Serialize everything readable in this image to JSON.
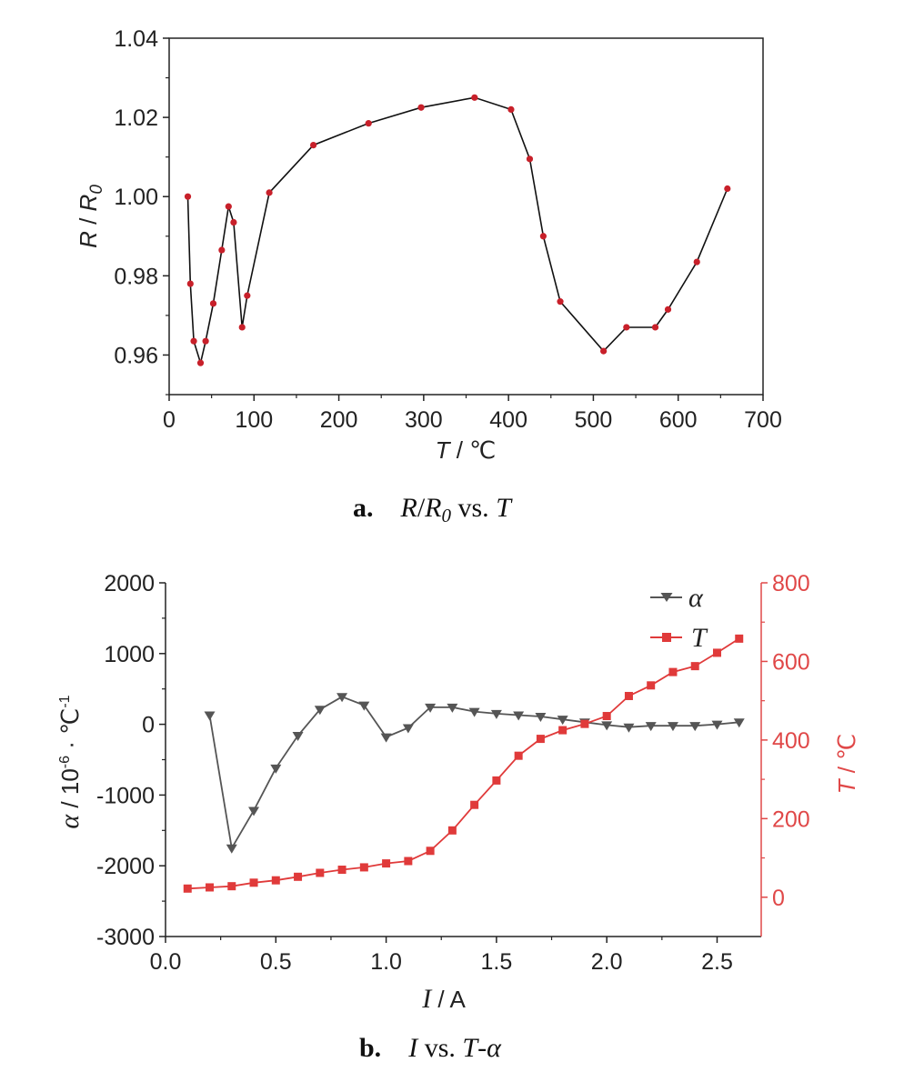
{
  "chart_data": [
    {
      "type": "line",
      "caption": {
        "letter": "a.",
        "text_parts": [
          "R",
          "/",
          "R",
          "0",
          " vs. ",
          "T"
        ]
      },
      "xlabel": "T / ℃",
      "xlabel_parts": {
        "var": "T",
        "unit": " / ℃"
      },
      "ylabel_parts": {
        "var1": "R",
        "slash": " / ",
        "var2": "R",
        "sub": "0"
      },
      "xlim": [
        0,
        700
      ],
      "ylim": [
        0.95,
        1.04
      ],
      "xticks": [
        "0",
        "100",
        "200",
        "300",
        "400",
        "500",
        "600",
        "700"
      ],
      "yticks": [
        "0.96",
        "0.98",
        "1.00",
        "1.02",
        "1.04"
      ],
      "series": [
        {
          "x": [
            22,
            25,
            29,
            37,
            43,
            52,
            62,
            70,
            76,
            86,
            92,
            118,
            170,
            235,
            297,
            360,
            403,
            425,
            441,
            461,
            512,
            539,
            573,
            588,
            622,
            658
          ],
          "y": [
            1.0,
            0.978,
            0.9635,
            0.958,
            0.9635,
            0.973,
            0.9865,
            0.9975,
            0.9935,
            0.967,
            0.975,
            1.001,
            1.013,
            1.0185,
            1.0225,
            1.025,
            1.022,
            1.0095,
            0.99,
            0.9735,
            0.961,
            0.967,
            0.967,
            0.9715,
            0.9835,
            1.002
          ]
        }
      ],
      "colors": {
        "line": "#111111",
        "marker": "#c8202a"
      }
    },
    {
      "type": "line",
      "caption": {
        "letter": "b.",
        "text_parts": [
          "I",
          " vs. ",
          "T",
          "-",
          "α"
        ]
      },
      "xlabel": "I / A",
      "xlabel_parts": {
        "var": "I",
        "unit": " / A"
      },
      "ylabel_left_parts": {
        "var": "α",
        "unit": " / 10",
        "sup": "-6",
        "unit2": " · ℃",
        "sup2": "-1"
      },
      "ylabel_right_parts": {
        "var": "T",
        "unit": " / ℃"
      },
      "xlim": [
        0.0,
        2.7
      ],
      "ylim_left": [
        -3000,
        2000
      ],
      "ylim_right": [
        -100,
        800
      ],
      "xticks": [
        "0.0",
        "0.5",
        "1.0",
        "1.5",
        "2.0",
        "2.5"
      ],
      "yticks_left": [
        "-3000",
        "-2000",
        "-1000",
        "0",
        "1000",
        "2000"
      ],
      "yticks_right": [
        "0",
        "200",
        "400",
        "600",
        "800"
      ],
      "legend": [
        "α",
        "T"
      ],
      "series": [
        {
          "name": "α",
          "axis": "left",
          "x": [
            0.2,
            0.3,
            0.4,
            0.5,
            0.6,
            0.7,
            0.8,
            0.9,
            1.0,
            1.1,
            1.2,
            1.3,
            1.4,
            1.5,
            1.6,
            1.7,
            1.8,
            1.9,
            2.0,
            2.1,
            2.2,
            2.3,
            2.4,
            2.5,
            2.6
          ],
          "y": [
            130,
            -1750,
            -1220,
            -620,
            -160,
            210,
            390,
            270,
            -180,
            -50,
            240,
            240,
            180,
            150,
            130,
            110,
            70,
            30,
            -10,
            -40,
            -20,
            -20,
            -20,
            0,
            30
          ],
          "color": "#555555"
        },
        {
          "name": "T",
          "axis": "right",
          "x": [
            0.1,
            0.2,
            0.3,
            0.4,
            0.5,
            0.6,
            0.7,
            0.8,
            0.9,
            1.0,
            1.1,
            1.2,
            1.3,
            1.4,
            1.5,
            1.6,
            1.7,
            1.8,
            1.9,
            2.0,
            2.1,
            2.2,
            2.3,
            2.4,
            2.5,
            2.6
          ],
          "y": [
            22,
            25,
            28,
            37,
            43,
            52,
            62,
            70,
            76,
            86,
            92,
            118,
            170,
            235,
            297,
            360,
            403,
            425,
            441,
            461,
            512,
            539,
            573,
            588,
            622,
            658
          ],
          "color": "#e03a3a"
        }
      ]
    }
  ]
}
